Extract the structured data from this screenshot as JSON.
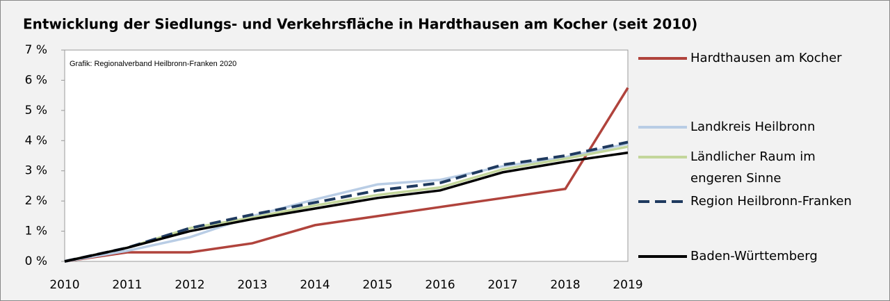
{
  "chart_data": {
    "type": "line",
    "title": "Entwicklung der Siedlungs- und Verkehrsfläche in Hardthausen am Kocher (seit 2010)",
    "note": "Grafik: Regionalverband Heilbronn-Franken 2020",
    "categories": [
      "2010",
      "2011",
      "2012",
      "2013",
      "2014",
      "2015",
      "2016",
      "2017",
      "2018",
      "2019"
    ],
    "series": [
      {
        "name": "Hardthausen am Kocher",
        "color": "#b0433c",
        "values": [
          0,
          0.3,
          0.3,
          0.6,
          1.2,
          1.5,
          1.8,
          2.1,
          2.4,
          5.75
        ]
      },
      {
        "name": "Landkreis Heilbronn",
        "color": "#b9cde5",
        "values": [
          0,
          0.35,
          0.8,
          1.5,
          2.05,
          2.55,
          2.7,
          3.15,
          3.45,
          3.9
        ]
      },
      {
        "name": "Ländlicher Raum im engeren Sinne",
        "color": "#c3d69b",
        "values": [
          0,
          0.45,
          1.1,
          1.45,
          1.85,
          2.2,
          2.45,
          3.05,
          3.4,
          3.8
        ]
      },
      {
        "name": "Region Heilbronn-Franken",
        "color": "#1f3a5f",
        "dash": true,
        "values": [
          0,
          0.45,
          1.1,
          1.55,
          1.95,
          2.35,
          2.6,
          3.2,
          3.5,
          3.95
        ]
      },
      {
        "name": "Baden-Württemberg",
        "color": "#000000",
        "values": [
          0,
          0.45,
          1.0,
          1.4,
          1.75,
          2.1,
          2.35,
          2.95,
          3.3,
          3.6
        ]
      }
    ],
    "ylim": [
      0,
      7
    ],
    "yticks": [
      {
        "value": 0,
        "label": "0 %"
      },
      {
        "value": 1,
        "label": "1 %"
      },
      {
        "value": 2,
        "label": "2 %"
      },
      {
        "value": 3,
        "label": "3 %"
      },
      {
        "value": 4,
        "label": "4 %"
      },
      {
        "value": 5,
        "label": "5 %"
      },
      {
        "value": 6,
        "label": "6 %"
      },
      {
        "value": 7,
        "label": "7 %"
      }
    ],
    "grid": false,
    "legend": "right"
  }
}
